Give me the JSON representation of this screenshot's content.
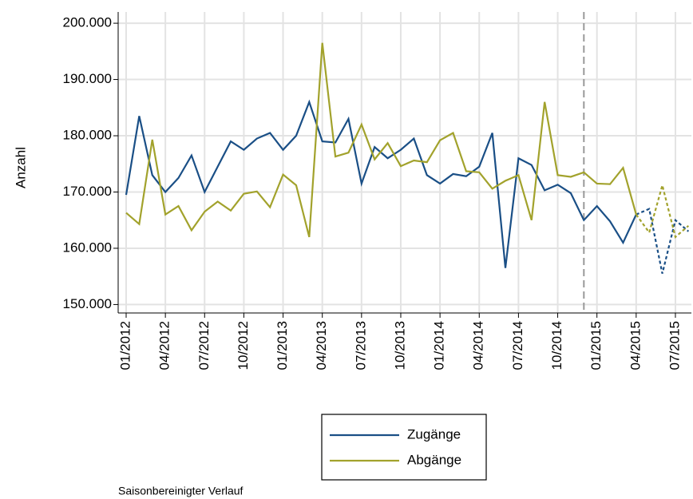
{
  "chart_data": {
    "type": "line",
    "y_label": "Anzahl",
    "note": "Saisonbereinigter Verlauf",
    "categories": [
      "01/2012",
      null,
      null,
      "04/2012",
      null,
      null,
      "07/2012",
      null,
      null,
      "10/2012",
      null,
      null,
      "01/2013",
      null,
      null,
      "04/2013",
      null,
      null,
      "07/2013",
      null,
      null,
      "10/2013",
      null,
      null,
      "01/2014",
      null,
      null,
      "04/2014",
      null,
      null,
      "07/2014",
      null,
      null,
      "10/2014",
      null,
      null,
      "01/2015",
      null,
      null,
      "04/2015",
      null,
      null,
      "07/2015",
      null
    ],
    "series": [
      {
        "name": "Zugänge",
        "color": "#1a4f86",
        "values": [
          169500,
          183500,
          173000,
          170000,
          172500,
          176500,
          170000,
          174500,
          179000,
          177500,
          179500,
          180500,
          177500,
          180000,
          186000,
          179000,
          178800,
          183000,
          171500,
          178000,
          176000,
          177500,
          179500,
          173000,
          171500,
          173200,
          172800,
          174500,
          180500,
          156500,
          176000,
          174800,
          170300,
          171300,
          169800,
          165000,
          167500,
          164800,
          161000,
          166000,
          null,
          null,
          null,
          null
        ],
        "forecast_values": [
          null,
          null,
          null,
          null,
          null,
          null,
          null,
          null,
          null,
          null,
          null,
          null,
          null,
          null,
          null,
          null,
          null,
          null,
          null,
          null,
          null,
          null,
          null,
          null,
          null,
          null,
          null,
          null,
          null,
          null,
          null,
          null,
          null,
          null,
          null,
          null,
          null,
          null,
          null,
          166000,
          167000,
          155500,
          165000,
          163000
        ]
      },
      {
        "name": "Abgänge",
        "color": "#a2a22c",
        "values": [
          166300,
          164300,
          179300,
          166000,
          167500,
          163200,
          166500,
          168300,
          166700,
          169700,
          170100,
          167300,
          173100,
          171200,
          162000,
          196500,
          176300,
          177000,
          182000,
          175800,
          178700,
          174600,
          175600,
          175300,
          179200,
          180500,
          173700,
          173500,
          170600,
          172000,
          173000,
          165000,
          186000,
          173000,
          172700,
          173500,
          171500,
          171400,
          174300,
          166000,
          null,
          null,
          null,
          null
        ],
        "forecast_values": [
          null,
          null,
          null,
          null,
          null,
          null,
          null,
          null,
          null,
          null,
          null,
          null,
          null,
          null,
          null,
          null,
          null,
          null,
          null,
          null,
          null,
          null,
          null,
          null,
          null,
          null,
          null,
          null,
          null,
          null,
          null,
          null,
          null,
          null,
          null,
          null,
          null,
          null,
          null,
          166000,
          162800,
          171200,
          162000,
          164000
        ]
      }
    ],
    "vline_x": 35,
    "ylim": [
      148500,
      202000
    ],
    "yticks": [
      {
        "value": 150000,
        "label": "150.000"
      },
      {
        "value": 160000,
        "label": "160.000"
      },
      {
        "value": 170000,
        "label": "170.000"
      },
      {
        "value": 180000,
        "label": "180.000"
      },
      {
        "value": 190000,
        "label": "190.000"
      },
      {
        "value": 200000,
        "label": "200.000"
      }
    ],
    "grid": true
  }
}
